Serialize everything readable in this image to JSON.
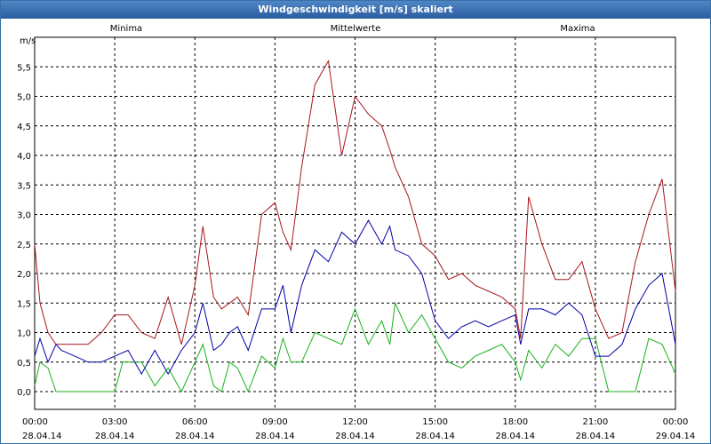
{
  "window": {
    "title": "Windgeschwindigkeit [m/s] skaliert"
  },
  "legend": {
    "min_label": "Minima",
    "mean_label": "Mittelwerte",
    "max_label": "Maxima"
  },
  "colors": {
    "min": "#19b219",
    "mean": "#0000a8",
    "max": "#a8171b",
    "grid": "#000000"
  },
  "chart_data": {
    "type": "line",
    "title": "Windgeschwindigkeit [m/s] skaliert",
    "ylabel": "m/s",
    "xlabel": "",
    "ylim": [
      -0.3,
      6.0
    ],
    "xlim": [
      0,
      24
    ],
    "grid": true,
    "y_ticks": [
      0.0,
      0.5,
      1.0,
      1.5,
      2.0,
      2.5,
      3.0,
      3.5,
      4.0,
      4.5,
      5.0,
      5.5
    ],
    "y_tick_labels": [
      "0,0",
      "0,5",
      "1,0",
      "1,5",
      "2,0",
      "2,5",
      "3,0",
      "3,5",
      "4,0",
      "4,5",
      "5,0",
      "5,5"
    ],
    "x_ticks": [
      0,
      3,
      6,
      9,
      12,
      15,
      18,
      21,
      24
    ],
    "x_tick_labels": [
      {
        "time": "00:00",
        "date": "28.04.14"
      },
      {
        "time": "03:00",
        "date": "28.04.14"
      },
      {
        "time": "06:00",
        "date": "28.04.14"
      },
      {
        "time": "09:00",
        "date": "28.04.14"
      },
      {
        "time": "12:00",
        "date": "28.04.14"
      },
      {
        "time": "15:00",
        "date": "28.04.14"
      },
      {
        "time": "18:00",
        "date": "28.04.14"
      },
      {
        "time": "21:00",
        "date": "28.04.14"
      },
      {
        "time": "00:00",
        "date": "29.04.14"
      }
    ],
    "series": [
      {
        "name": "Minima",
        "x": [
          0,
          0.2,
          0.5,
          0.8,
          1,
          1.5,
          2,
          2.5,
          3,
          3.3,
          4,
          4.5,
          5,
          5.5,
          6,
          6.3,
          6.7,
          7,
          7.3,
          7.6,
          8,
          8.5,
          9,
          9.3,
          9.6,
          10,
          10.5,
          11,
          11.5,
          12,
          12.5,
          13,
          13.3,
          13.5,
          14,
          14.5,
          15,
          15.5,
          16,
          16.5,
          17,
          17.5,
          18,
          18.2,
          18.5,
          19,
          19.5,
          20,
          20.5,
          21,
          21.5,
          22,
          22.5,
          23,
          23.5,
          24
        ],
        "values": [
          0.1,
          0.5,
          0.4,
          0.0,
          0.0,
          0.0,
          0.0,
          0.0,
          0.0,
          0.5,
          0.5,
          0.1,
          0.4,
          0.0,
          0.5,
          0.8,
          0.1,
          0.0,
          0.5,
          0.4,
          0.0,
          0.6,
          0.4,
          0.9,
          0.5,
          0.5,
          1.0,
          0.9,
          0.8,
          1.4,
          0.8,
          1.2,
          0.8,
          1.5,
          1.0,
          1.3,
          0.9,
          0.5,
          0.4,
          0.6,
          0.7,
          0.8,
          0.5,
          0.2,
          0.7,
          0.4,
          0.8,
          0.6,
          0.9,
          0.9,
          0.0,
          0.0,
          0.0,
          0.9,
          0.8,
          0.3
        ]
      },
      {
        "name": "Mittelwerte",
        "x": [
          0,
          0.2,
          0.5,
          0.8,
          1,
          1.5,
          2,
          2.5,
          3,
          3.5,
          4,
          4.5,
          5,
          5.5,
          6,
          6.3,
          6.7,
          7,
          7.3,
          7.6,
          8,
          8.5,
          9,
          9.3,
          9.6,
          10,
          10.5,
          11,
          11.5,
          12,
          12.5,
          13,
          13.3,
          13.5,
          14,
          14.5,
          15,
          15.5,
          16,
          16.5,
          17,
          17.5,
          18,
          18.2,
          18.5,
          19,
          19.5,
          20,
          20.5,
          21,
          21.5,
          22,
          22.5,
          23,
          23.5,
          24
        ],
        "values": [
          0.6,
          0.9,
          0.5,
          0.8,
          0.7,
          0.6,
          0.5,
          0.5,
          0.6,
          0.7,
          0.3,
          0.7,
          0.3,
          0.7,
          1.0,
          1.5,
          0.7,
          0.8,
          1.0,
          1.1,
          0.7,
          1.4,
          1.4,
          1.8,
          1.0,
          1.8,
          2.4,
          2.2,
          2.7,
          2.5,
          2.9,
          2.5,
          2.8,
          2.4,
          2.3,
          2.0,
          1.2,
          0.9,
          1.1,
          1.2,
          1.1,
          1.2,
          1.3,
          0.8,
          1.4,
          1.4,
          1.3,
          1.5,
          1.3,
          0.6,
          0.6,
          0.8,
          1.4,
          1.8,
          2.0,
          0.8
        ]
      },
      {
        "name": "Maxima",
        "x": [
          0,
          0.2,
          0.5,
          0.8,
          1,
          1.5,
          2,
          2.5,
          3,
          3.5,
          4,
          4.5,
          5,
          5.5,
          6,
          6.3,
          6.7,
          7,
          7.3,
          7.6,
          8,
          8.5,
          9,
          9.3,
          9.6,
          10,
          10.5,
          11,
          11.5,
          12,
          12.5,
          13,
          13.3,
          13.5,
          14,
          14.5,
          15,
          15.5,
          16,
          16.5,
          17,
          17.5,
          18,
          18.2,
          18.5,
          19,
          19.5,
          20,
          20.5,
          21,
          21.5,
          22,
          22.5,
          23,
          23.5,
          24
        ],
        "values": [
          2.5,
          1.5,
          1.0,
          0.8,
          0.8,
          0.8,
          0.8,
          1.0,
          1.3,
          1.3,
          1.0,
          0.9,
          1.6,
          0.8,
          1.8,
          2.8,
          1.6,
          1.4,
          1.5,
          1.6,
          1.3,
          3.0,
          3.2,
          2.7,
          2.4,
          3.8,
          5.2,
          5.6,
          4.0,
          5.0,
          4.7,
          4.5,
          4.1,
          3.8,
          3.3,
          2.5,
          2.3,
          1.9,
          2.0,
          1.8,
          1.7,
          1.6,
          1.4,
          0.9,
          3.3,
          2.5,
          1.9,
          1.9,
          2.2,
          1.4,
          0.9,
          1.0,
          2.2,
          3.0,
          3.6,
          1.7
        ]
      }
    ]
  }
}
